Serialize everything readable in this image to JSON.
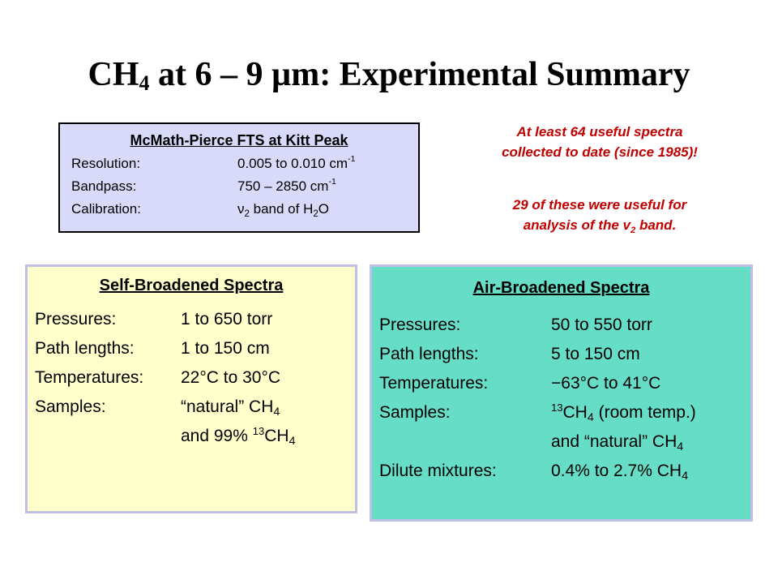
{
  "title": {
    "pre": "CH",
    "sub": "4",
    "post": " at 6 – 9 µm: Experimental Summary"
  },
  "fts": {
    "heading": "McMath-Pierce FTS at Kitt Peak",
    "resolution": {
      "label": "Resolution:",
      "value": "0.005 to 0.010 cm",
      "sup": "-1"
    },
    "bandpass": {
      "label": "Bandpass:",
      "value": "750 – 2850 cm",
      "sup": "-1"
    },
    "calibration": {
      "label": "Calibration:",
      "nu": "ν",
      "nu_sub": "2",
      "mid": " band of H",
      "h_sub": "2",
      "end": "O"
    }
  },
  "note": {
    "line1": "At least 64 useful spectra",
    "line2": "collected to date (since 1985)!",
    "line3": "29 of these were useful for",
    "line4_pre": "analysis of the v",
    "line4_sub": "2",
    "line4_post": " band."
  },
  "self_broadened": {
    "heading": "Self-Broadened Spectra",
    "pressures": {
      "label": "Pressures:",
      "value": "1 to 650 torr"
    },
    "path_lengths": {
      "label": "Path lengths:",
      "value": "1 to 150 cm"
    },
    "temperatures": {
      "label": "Temperatures:",
      "value": "22°C  to 30°C"
    },
    "samples": {
      "label": "Samples:",
      "value": "“natural” CH",
      "sub": "4"
    },
    "samples2": {
      "pre": "and 99% ",
      "sup": "13",
      "mid": "CH",
      "sub": "4"
    }
  },
  "air_broadened": {
    "heading": "Air-Broadened Spectra",
    "pressures": {
      "label": "Pressures:",
      "value": "50 to 550 torr"
    },
    "path_lengths": {
      "label": "Path lengths:",
      "value": "5 to 150 cm"
    },
    "temperatures": {
      "label": "Temperatures:",
      "value": "−63°C  to 41°C"
    },
    "samples": {
      "label": "Samples:",
      "sup": "13",
      "mid": "CH",
      "sub": "4",
      "post": " (room temp.)"
    },
    "samples2": {
      "pre": "and “natural” CH",
      "sub": "4"
    },
    "dilute": {
      "label": "Dilute mixtures:",
      "value": "0.4%  to 2.7% CH",
      "sub": "4"
    }
  }
}
